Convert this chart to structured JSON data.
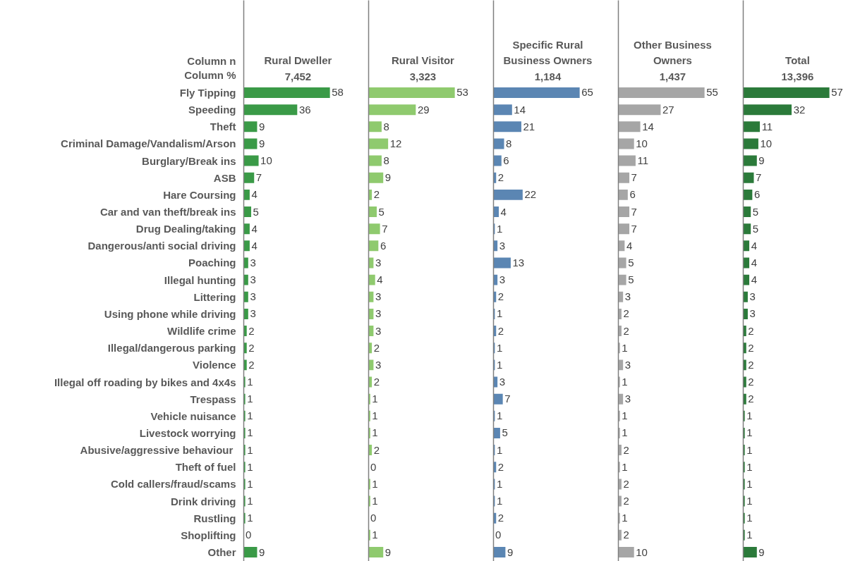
{
  "chart_data": [
    {
      "type": "bar",
      "orientation": "horizontal",
      "title": "Rural Dweller",
      "subtitle": "7,452",
      "annotations": [
        "Column n",
        "Column %"
      ],
      "tick_labels": "y",
      "data_labels": true,
      "color": "#3a9a47",
      "categories": [
        "Fly Tipping",
        "Speeding",
        "Theft",
        "Criminal Damage/Vandalism/Arson",
        "Burglary/Break ins",
        "ASB",
        "Hare Coursing",
        "Car and van theft/break ins",
        "Drug Dealing/taking",
        "Dangerous/anti social driving",
        "Poaching",
        "Illegal hunting",
        "Littering",
        "Using phone while driving",
        "Wildlife crime",
        "Illegal/dangerous parking",
        "Violence",
        "Illegal off roading by bikes and 4x4s",
        "Trespass",
        "Vehicle nuisance",
        "Livestock worrying",
        "Abusive/aggressive  behaviour",
        "Theft of fuel",
        "Cold callers/fraud/scams",
        "Drink driving",
        "Rustling",
        "Shoplifting",
        "Other"
      ],
      "values": [
        58,
        36,
        9,
        9,
        10,
        7,
        4,
        5,
        4,
        4,
        3,
        3,
        3,
        3,
        2,
        2,
        2,
        1,
        1,
        1,
        1,
        1,
        1,
        1,
        1,
        1,
        0,
        9
      ]
    },
    {
      "type": "bar",
      "orientation": "horizontal",
      "title": "Rural Visitor",
      "subtitle": "3,323",
      "tick_labels": false,
      "data_labels": true,
      "color": "#8fca6e",
      "categories": [
        "Fly Tipping",
        "Speeding",
        "Theft",
        "Criminal Damage/Vandalism/Arson",
        "Burglary/Break ins",
        "ASB",
        "Hare Coursing",
        "Car and van theft/break ins",
        "Drug Dealing/taking",
        "Dangerous/anti social driving",
        "Poaching",
        "Illegal hunting",
        "Littering",
        "Using phone while driving",
        "Wildlife crime",
        "Illegal/dangerous parking",
        "Violence",
        "Illegal off roading by bikes and 4x4s",
        "Trespass",
        "Vehicle nuisance",
        "Livestock worrying",
        "Abusive/aggressive  behaviour",
        "Theft of fuel",
        "Cold callers/fraud/scams",
        "Drink driving",
        "Rustling",
        "Shoplifting",
        "Other"
      ],
      "values": [
        53,
        29,
        8,
        12,
        8,
        9,
        2,
        5,
        7,
        6,
        3,
        4,
        3,
        3,
        3,
        2,
        3,
        2,
        1,
        1,
        1,
        2,
        0,
        1,
        1,
        0,
        1,
        9
      ]
    },
    {
      "type": "bar",
      "orientation": "horizontal",
      "title": "Specific Rural Business Owners",
      "subtitle": "1,184",
      "tick_labels": false,
      "data_labels": true,
      "color": "#5b86b3",
      "categories": [
        "Fly Tipping",
        "Speeding",
        "Theft",
        "Criminal Damage/Vandalism/Arson",
        "Burglary/Break ins",
        "ASB",
        "Hare Coursing",
        "Car and van theft/break ins",
        "Drug Dealing/taking",
        "Dangerous/anti social driving",
        "Poaching",
        "Illegal hunting",
        "Littering",
        "Using phone while driving",
        "Wildlife crime",
        "Illegal/dangerous parking",
        "Violence",
        "Illegal off roading by bikes and 4x4s",
        "Trespass",
        "Vehicle nuisance",
        "Livestock worrying",
        "Abusive/aggressive  behaviour",
        "Theft of fuel",
        "Cold callers/fraud/scams",
        "Drink driving",
        "Rustling",
        "Shoplifting",
        "Other"
      ],
      "values": [
        65,
        14,
        21,
        8,
        6,
        2,
        22,
        4,
        1,
        3,
        13,
        3,
        2,
        1,
        2,
        1,
        1,
        3,
        7,
        1,
        5,
        1,
        2,
        1,
        1,
        2,
        0,
        9
      ]
    },
    {
      "type": "bar",
      "orientation": "horizontal",
      "title": "Other Business Owners",
      "subtitle": "1,437",
      "tick_labels": false,
      "data_labels": true,
      "color": "#a6a6a6",
      "categories": [
        "Fly Tipping",
        "Speeding",
        "Theft",
        "Criminal Damage/Vandalism/Arson",
        "Burglary/Break ins",
        "ASB",
        "Hare Coursing",
        "Car and van theft/break ins",
        "Drug Dealing/taking",
        "Dangerous/anti social driving",
        "Poaching",
        "Illegal hunting",
        "Littering",
        "Using phone while driving",
        "Wildlife crime",
        "Illegal/dangerous parking",
        "Violence",
        "Illegal off roading by bikes and 4x4s",
        "Trespass",
        "Vehicle nuisance",
        "Livestock worrying",
        "Abusive/aggressive  behaviour",
        "Theft of fuel",
        "Cold callers/fraud/scams",
        "Drink driving",
        "Rustling",
        "Shoplifting",
        "Other"
      ],
      "values": [
        55,
        27,
        14,
        10,
        11,
        7,
        6,
        7,
        7,
        4,
        5,
        5,
        3,
        2,
        2,
        1,
        3,
        1,
        3,
        1,
        1,
        2,
        1,
        2,
        2,
        1,
        2,
        10
      ]
    },
    {
      "type": "bar",
      "orientation": "horizontal",
      "title": "Total",
      "subtitle": "13,396",
      "tick_labels": false,
      "data_labels": true,
      "color": "#2b7a3a",
      "categories": [
        "Fly Tipping",
        "Speeding",
        "Theft",
        "Criminal Damage/Vandalism/Arson",
        "Burglary/Break ins",
        "ASB",
        "Hare Coursing",
        "Car and van theft/break ins",
        "Drug Dealing/taking",
        "Dangerous/anti social driving",
        "Poaching",
        "Illegal hunting",
        "Littering",
        "Using phone while driving",
        "Wildlife crime",
        "Illegal/dangerous parking",
        "Violence",
        "Illegal off roading by bikes and 4x4s",
        "Trespass",
        "Vehicle nuisance",
        "Livestock worrying",
        "Abusive/aggressive  behaviour",
        "Theft of fuel",
        "Cold callers/fraud/scams",
        "Drink driving",
        "Rustling",
        "Shoplifting",
        "Other"
      ],
      "values": [
        57,
        32,
        11,
        10,
        9,
        7,
        6,
        5,
        5,
        4,
        4,
        4,
        3,
        3,
        2,
        2,
        2,
        2,
        2,
        1,
        1,
        1,
        1,
        1,
        1,
        1,
        1,
        9
      ]
    }
  ]
}
